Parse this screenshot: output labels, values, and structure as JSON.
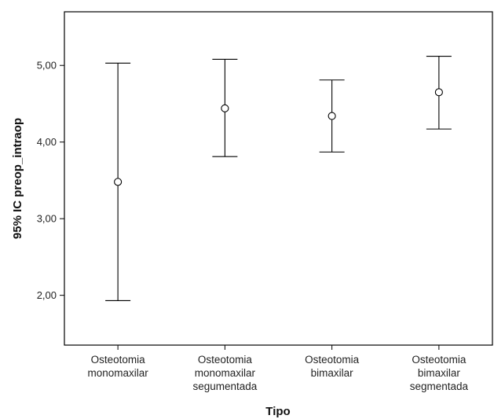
{
  "chart_data": {
    "type": "errorbar",
    "xlabel": "Tipo",
    "ylabel": "95% IC preop_intraop",
    "ylim": [
      1.35,
      5.7
    ],
    "yticks": [
      "2,00",
      "3,00",
      "4,00",
      "5,00"
    ],
    "ytick_values": [
      2.0,
      3.0,
      4.0,
      5.0
    ],
    "grid": false,
    "categories": [
      [
        "Osteotomia",
        "monomaxilar"
      ],
      [
        "Osteotomia",
        "monomaxilar",
        "segumentada"
      ],
      [
        "Osteotomia",
        "bimaxilar"
      ],
      [
        "Osteotomia",
        "bimaxilar",
        "segmentada"
      ]
    ],
    "means": [
      3.48,
      4.44,
      4.34,
      4.65
    ],
    "lower": [
      1.93,
      3.81,
      3.87,
      4.17
    ],
    "upper": [
      5.03,
      5.08,
      4.81,
      5.12
    ],
    "colors": {
      "axis": "#000000",
      "bar": "#000000",
      "text": "#222222"
    }
  }
}
